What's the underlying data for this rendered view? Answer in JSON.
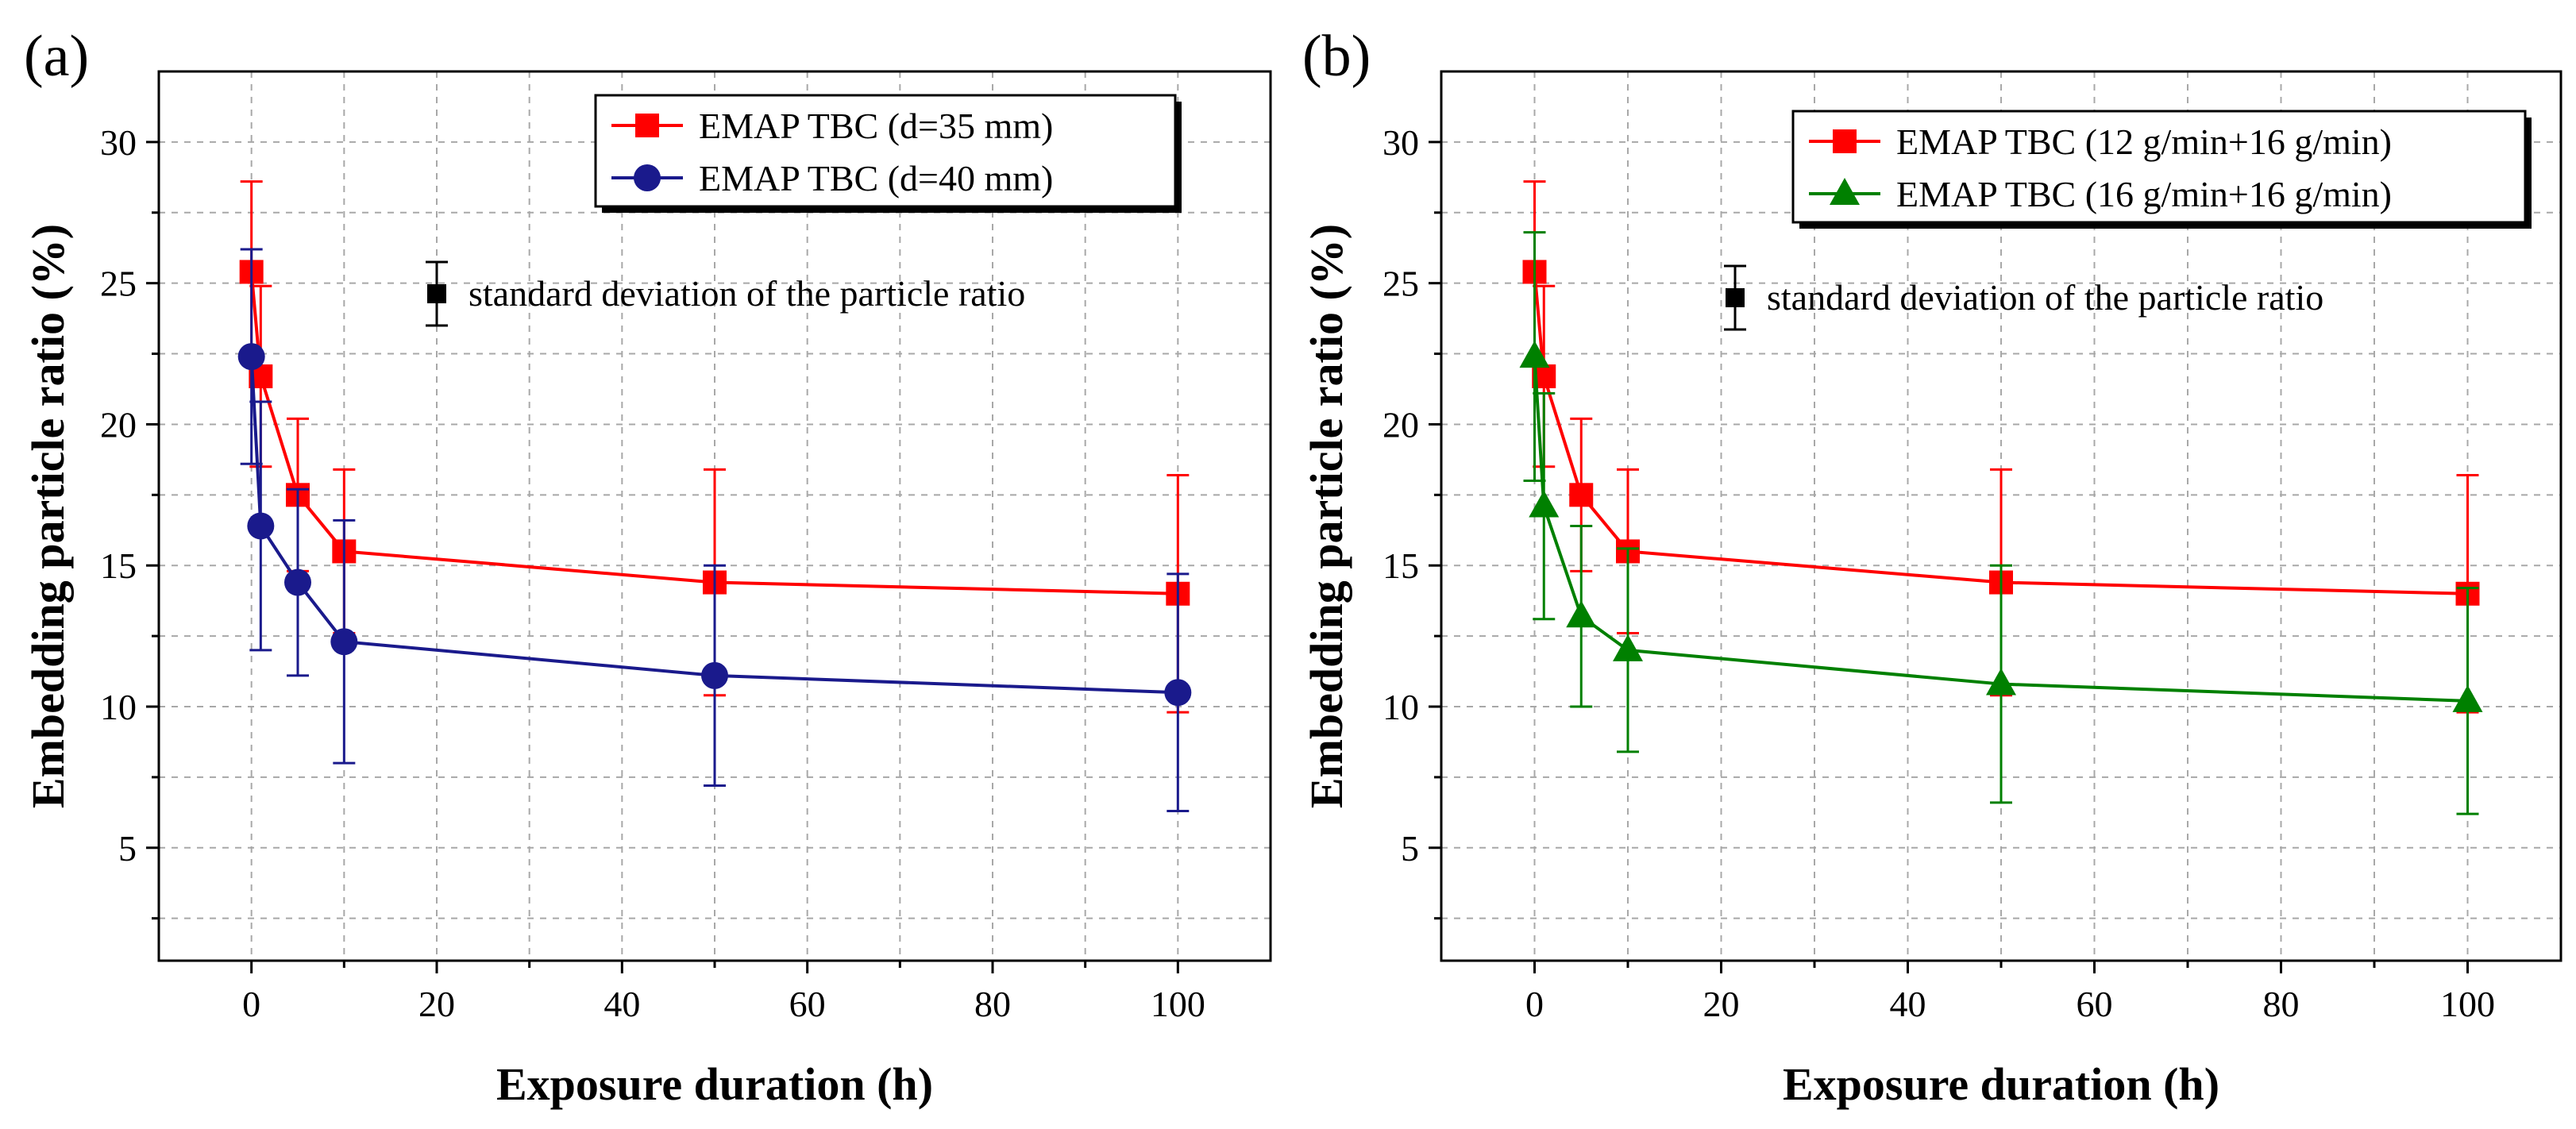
{
  "chart_data": [
    {
      "panel_label": "(a)",
      "type": "line",
      "xlabel": "Exposure duration (h)",
      "ylabel": "Embedding particle ratio (%)",
      "xlim": [
        -10,
        110
      ],
      "ylim": [
        1,
        32.5
      ],
      "xticks": [
        0,
        20,
        40,
        60,
        80,
        100
      ],
      "yticks": [
        5,
        10,
        15,
        20,
        25,
        30
      ],
      "grid": true,
      "std_note": "standard deviation of the particle ratio",
      "series": [
        {
          "name": "EMAP TBC (d=35 mm)",
          "color": "#ff0000",
          "marker": "square",
          "x": [
            0,
            1,
            5,
            10,
            50,
            100
          ],
          "y": [
            25.4,
            21.7,
            17.5,
            15.5,
            14.4,
            14.0
          ],
          "err": [
            3.2,
            3.2,
            2.7,
            2.9,
            4.0,
            4.2
          ]
        },
        {
          "name": "EMAP TBC (d=40 mm)",
          "color": "#1a1a8c",
          "marker": "circle",
          "x": [
            0,
            1,
            5,
            10,
            50,
            100
          ],
          "y": [
            22.4,
            16.4,
            14.4,
            12.3,
            11.1,
            10.5
          ],
          "err": [
            3.8,
            4.4,
            3.3,
            4.3,
            3.9,
            4.2
          ]
        }
      ]
    },
    {
      "panel_label": "(b)",
      "type": "line",
      "xlabel": "Exposure duration (h)",
      "ylabel": "Embedding particle ratio (%)",
      "xlim": [
        -10,
        110
      ],
      "ylim": [
        1,
        32.5
      ],
      "xticks": [
        0,
        20,
        40,
        60,
        80,
        100
      ],
      "yticks": [
        5,
        10,
        15,
        20,
        25,
        30
      ],
      "grid": true,
      "std_note": "standard deviation of the particle ratio",
      "series": [
        {
          "name": "EMAP TBC (12 g/min+16 g/min)",
          "color": "#ff0000",
          "marker": "square",
          "x": [
            0,
            1,
            5,
            10,
            50,
            100
          ],
          "y": [
            25.4,
            21.7,
            17.5,
            15.5,
            14.4,
            14.0
          ],
          "err": [
            3.2,
            3.2,
            2.7,
            2.9,
            4.0,
            4.2
          ]
        },
        {
          "name": "EMAP TBC (16 g/min+16 g/min)",
          "color": "#008000",
          "marker": "triangle",
          "x": [
            0,
            1,
            5,
            10,
            50,
            100
          ],
          "y": [
            22.4,
            17.1,
            13.2,
            12.0,
            10.8,
            10.2
          ],
          "err": [
            4.4,
            4.0,
            3.2,
            3.6,
            4.2,
            4.0
          ]
        }
      ]
    }
  ]
}
